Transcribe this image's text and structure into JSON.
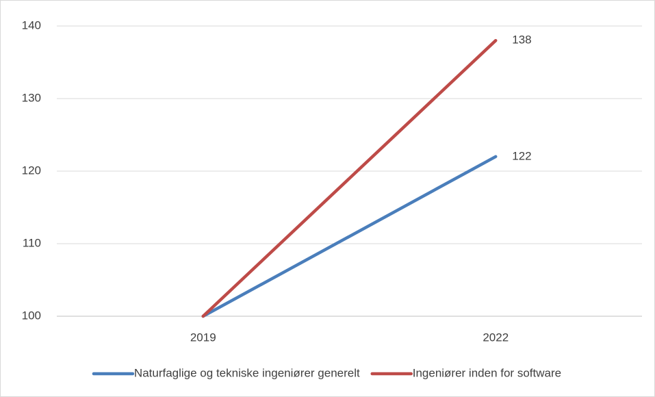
{
  "chart_data": {
    "type": "line",
    "categories": [
      "2019",
      "2022"
    ],
    "series": [
      {
        "name": "Naturfaglige og tekniske ingeniører generelt",
        "color": "#4a7ebb",
        "values": [
          100,
          122
        ],
        "value_labels": [
          null,
          "122"
        ]
      },
      {
        "name": "Ingeniører inden for software",
        "color": "#be4b48",
        "values": [
          100,
          138
        ],
        "value_labels": [
          null,
          "138"
        ]
      }
    ],
    "ylim": [
      100,
      140
    ],
    "yticks": [
      100,
      110,
      120,
      130,
      140
    ],
    "grid": true,
    "legend": "bottom"
  }
}
